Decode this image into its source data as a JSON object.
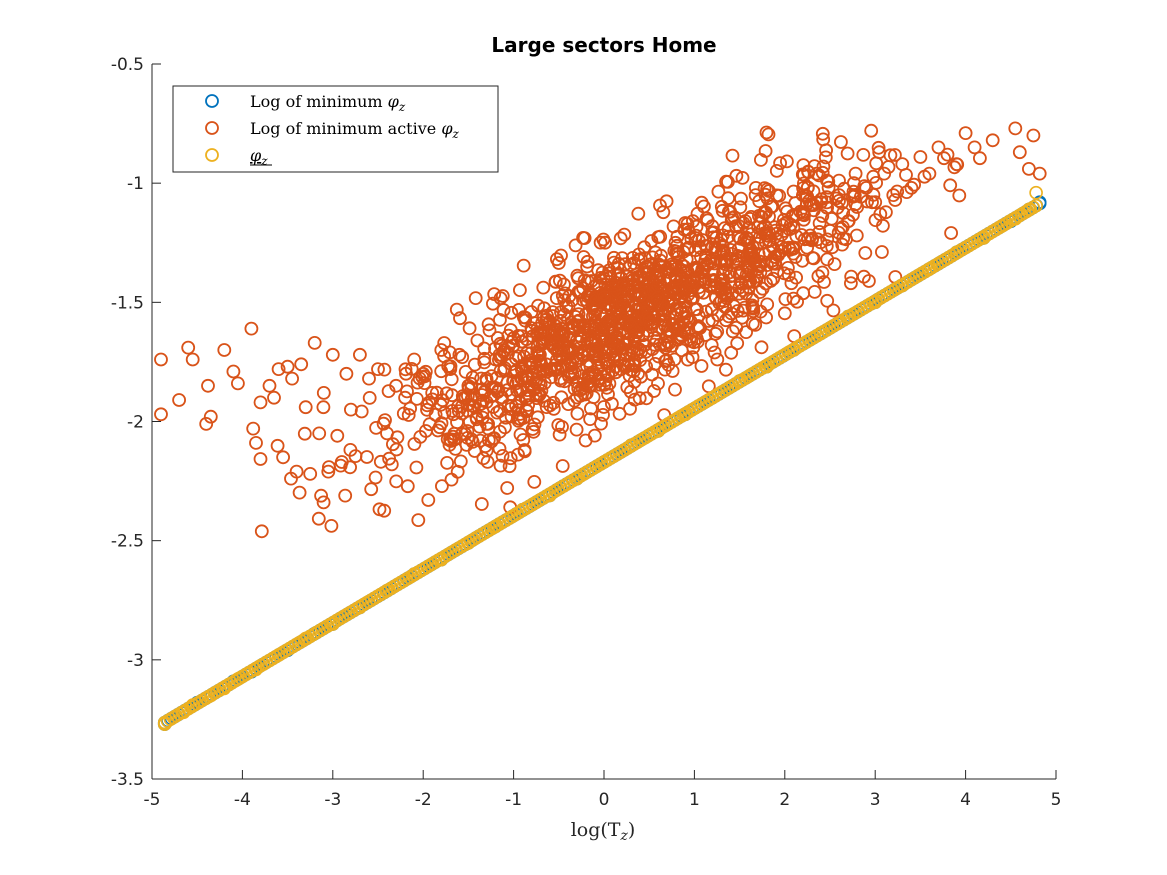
{
  "chart_data": {
    "type": "scatter",
    "title": "Large sectors Home",
    "xlabel": "log(T",
    "xlabel_sub": "z",
    "xlabel_close": ")",
    "ylabel": "",
    "xlim": [
      -5,
      5
    ],
    "ylim": [
      -3.5,
      -0.5
    ],
    "xticks": [
      -5,
      -4,
      -3,
      -2,
      -1,
      0,
      1,
      2,
      3,
      4,
      5
    ],
    "yticks": [
      -3.5,
      -3,
      -2.5,
      -2,
      -1.5,
      -1,
      -0.5
    ],
    "xtick_labels": [
      "-5",
      "-4",
      "-3",
      "-2",
      "-1",
      "0",
      "1",
      "2",
      "3",
      "4",
      "5"
    ],
    "ytick_labels": [
      "-3.5",
      "-3",
      "-2.5",
      "-2",
      "-1.5",
      "-1",
      "-0.5"
    ],
    "legend_position": "top-left",
    "series": [
      {
        "name": "Log of minimum φ_z",
        "legend_text": "Log of minimum ",
        "legend_sym": "φ",
        "legend_sub": "z",
        "color": "#0072BD",
        "marker": "open-circle",
        "relation": "y = 0.225·x − 2.17",
        "x": [
          -4.86,
          -4.5,
          -4.4,
          -4.1,
          -3.9,
          -3.5,
          -3.2,
          -3.0,
          -2.7,
          -2.4,
          -2.1,
          -1.8,
          -1.5,
          -1.2,
          -0.9,
          -0.6,
          -0.3,
          0.0,
          0.3,
          0.6,
          0.9,
          1.2,
          1.5,
          1.8,
          2.1,
          2.4,
          2.7,
          3.0,
          3.3,
          3.6,
          3.9,
          4.2,
          4.5,
          4.7,
          4.82
        ],
        "y": [
          -3.27,
          -3.18,
          -3.16,
          -3.09,
          -3.05,
          -2.96,
          -2.89,
          -2.85,
          -2.78,
          -2.71,
          -2.64,
          -2.58,
          -2.51,
          -2.44,
          -2.37,
          -2.31,
          -2.24,
          -2.17,
          -2.1,
          -2.04,
          -1.97,
          -1.9,
          -1.83,
          -1.77,
          -1.7,
          -1.63,
          -1.56,
          -1.5,
          -1.43,
          -1.36,
          -1.29,
          -1.23,
          -1.16,
          -1.11,
          -1.08
        ]
      },
      {
        "name": "Log of minimum active φ_z",
        "legend_text": "Log of minimum active ",
        "legend_sym": "φ",
        "legend_sub": "z",
        "color": "#D95319",
        "marker": "open-circle",
        "x": [
          -4.9,
          -4.9,
          -4.7,
          -4.6,
          -4.55,
          -4.4,
          -4.38,
          -4.35,
          -4.2,
          -4.1,
          -4.05,
          -3.9,
          -3.88,
          -3.85,
          -3.8,
          -3.7,
          -3.65,
          -3.6,
          -3.55,
          -3.5,
          -3.45,
          -3.4,
          -3.35,
          -3.3,
          -3.25,
          -3.2,
          -3.15,
          -3.1,
          -3.05,
          -3.0,
          -2.95,
          -2.9,
          -2.85,
          -2.8,
          -2.7,
          -2.6,
          -2.5,
          -2.4,
          -2.3,
          -2.2,
          -2.1,
          -2.0,
          -1.9,
          -1.8,
          -1.7,
          -1.6,
          -1.5,
          -1.4,
          -1.3,
          -1.2,
          -1.1,
          -1.0,
          -0.9,
          -0.8,
          -0.7,
          -0.6,
          -0.5,
          -0.4,
          -0.3,
          -0.2,
          -0.1,
          0.0,
          0.1,
          0.2,
          0.3,
          0.4,
          0.5,
          0.6,
          0.7,
          0.8,
          0.9,
          1.0,
          1.1,
          1.2,
          1.3,
          1.4,
          1.5,
          1.6,
          1.7,
          1.8,
          1.9,
          2.0,
          2.1,
          2.2,
          2.3,
          2.4,
          2.5,
          2.6,
          2.7,
          2.8,
          2.9,
          3.0,
          3.1,
          3.2,
          3.3,
          3.4,
          3.5,
          3.6,
          3.7,
          3.8,
          3.9,
          4.0,
          4.1,
          4.3,
          4.55,
          4.6,
          4.7,
          4.75,
          4.82
        ],
        "y": [
          -1.74,
          -1.97,
          -1.91,
          -1.69,
          -1.74,
          -2.01,
          -1.85,
          -1.98,
          -1.7,
          -1.79,
          -1.84,
          -1.61,
          -2.03,
          -2.09,
          -1.92,
          -1.85,
          -1.9,
          -1.78,
          -2.15,
          -1.77,
          -1.82,
          -2.21,
          -1.76,
          -1.94,
          -2.22,
          -1.67,
          -2.05,
          -1.88,
          -2.21,
          -1.72,
          -2.06,
          -2.17,
          -1.8,
          -1.95,
          -1.72,
          -1.82,
          -1.78,
          -2.05,
          -1.85,
          -1.9,
          -1.74,
          -1.8,
          -1.88,
          -1.7,
          -1.78,
          -1.72,
          -1.85,
          -1.66,
          -1.82,
          -1.74,
          -1.7,
          -1.65,
          -1.79,
          -1.62,
          -1.75,
          -1.58,
          -1.7,
          -1.57,
          -1.66,
          -1.55,
          -1.68,
          -1.52,
          -1.62,
          -1.5,
          -1.6,
          -1.47,
          -1.57,
          -1.43,
          -1.53,
          -1.4,
          -1.5,
          -1.36,
          -1.46,
          -1.33,
          -1.44,
          -1.28,
          -1.38,
          -1.25,
          -1.36,
          -1.21,
          -1.31,
          -1.17,
          -1.27,
          -1.13,
          -1.24,
          -1.08,
          -1.2,
          -1.05,
          -1.16,
          -1.1,
          -1.02,
          -1.08,
          -0.96,
          -1.05,
          -0.92,
          -1.02,
          -0.89,
          -0.96,
          -0.85,
          -0.88,
          -0.92,
          -0.79,
          -0.85,
          -0.82,
          -0.77,
          -0.87,
          -0.94,
          -0.8,
          -0.96
        ],
        "cloud": {
          "center_relation": "y ≈ 0.19·x − 1.62",
          "spread": 0.16
        }
      },
      {
        "name": "φ_z (underlined)",
        "legend_text": "",
        "legend_sym": "φ",
        "legend_sub": "z",
        "color": "#EDB120",
        "marker": "open-circle",
        "relation": "y = 0.225·x − 2.17",
        "x": [
          -4.86,
          -4.65,
          -4.55,
          -4.4,
          -4.35,
          -4.2,
          -4.05,
          -3.85,
          -3.6,
          -3.3,
          -3.0,
          -2.7,
          -2.4,
          -2.1,
          -1.8,
          -1.5,
          -1.2,
          -0.9,
          -0.6,
          -0.3,
          0.0,
          0.3,
          0.6,
          0.9,
          1.2,
          1.5,
          1.8,
          2.1,
          2.4,
          2.7,
          3.0,
          3.3,
          3.6,
          3.9,
          4.2,
          4.4,
          4.55,
          4.7,
          4.78
        ],
        "y": [
          -3.27,
          -3.22,
          -3.19,
          -3.16,
          -3.15,
          -3.12,
          -3.08,
          -3.04,
          -2.98,
          -2.91,
          -2.85,
          -2.78,
          -2.71,
          -2.64,
          -2.58,
          -2.51,
          -2.44,
          -2.37,
          -2.31,
          -2.24,
          -2.17,
          -2.1,
          -2.04,
          -1.97,
          -1.9,
          -1.83,
          -1.77,
          -1.7,
          -1.63,
          -1.56,
          -1.5,
          -1.43,
          -1.36,
          -1.29,
          -1.23,
          -1.18,
          -1.15,
          -1.11,
          -1.04
        ]
      }
    ]
  }
}
